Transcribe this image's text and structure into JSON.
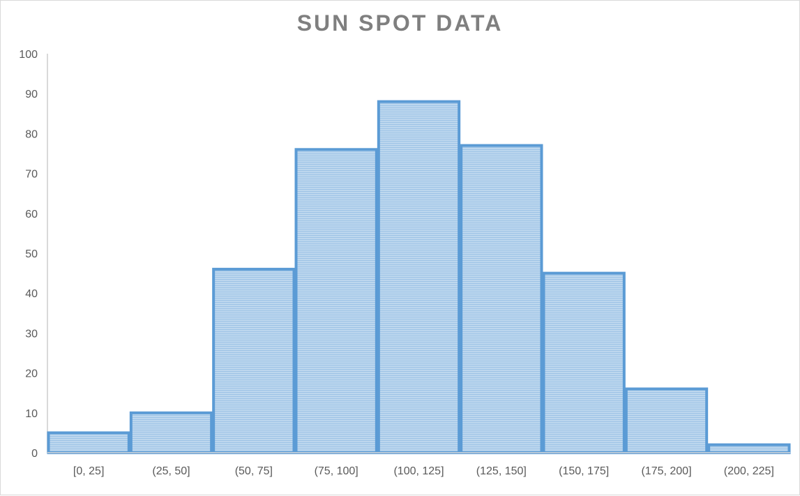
{
  "chart_data": {
    "type": "bar",
    "title": "SUN SPOT DATA",
    "xlabel": "",
    "ylabel": "",
    "categories": [
      "[0, 25]",
      "(25, 50]",
      "(50, 75]",
      "(75, 100]",
      "(100, 125]",
      "(125, 150]",
      "(150, 175]",
      "(175, 200]",
      "(200, 225]"
    ],
    "values": [
      5,
      10,
      46,
      76,
      88,
      77,
      45,
      16,
      2
    ],
    "ylim": [
      0,
      100
    ],
    "yticks": [
      0,
      10,
      20,
      30,
      40,
      50,
      60,
      70,
      80,
      90,
      100
    ],
    "grid": false,
    "legend": "none",
    "bar_gap": 0
  },
  "colors": {
    "bar_fill": "#bdd7ee",
    "bar_hatch": "#9dc3e6",
    "bar_edge": "#5b9bd5",
    "axis": "#d9d9d9",
    "title": "#7f7f7f",
    "tick_text": "#595959"
  }
}
